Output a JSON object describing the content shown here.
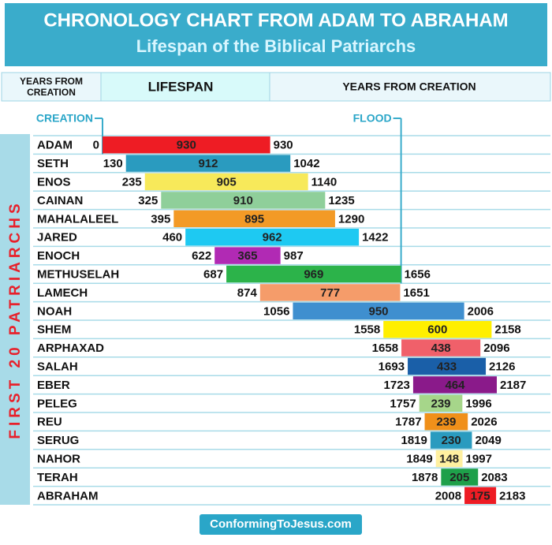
{
  "chart_data": {
    "type": "timeline",
    "title": "CHRONOLOGY CHART FROM ADAM TO ABRAHAM",
    "subtitle": "Lifespan of the Biblical Patriarchs",
    "headers": [
      "YEARS FROM CREATION",
      "LIFESPAN",
      "YEARS FROM CREATION"
    ],
    "markers": [
      "CREATION",
      "FLOOD"
    ],
    "side_label": "FIRST 20 PATRIARCHS",
    "footer": "ConformingToJesus.com",
    "categories": [
      "ADAM",
      "SETH",
      "ENOS",
      "CAINAN",
      "MAHALALEEL",
      "JARED",
      "ENOCH",
      "METHUSELAH",
      "LAMECH",
      "NOAH",
      "SHEM",
      "ARPHAXAD",
      "SALAH",
      "EBER",
      "PELEG",
      "REU",
      "SERUG",
      "NAHOR",
      "TERAH",
      "ABRAHAM"
    ],
    "start": [
      0,
      130,
      235,
      325,
      395,
      460,
      622,
      687,
      874,
      1056,
      1558,
      1658,
      1693,
      1723,
      1757,
      1787,
      1819,
      1849,
      1878,
      2008
    ],
    "lifespan": [
      930,
      912,
      905,
      910,
      895,
      962,
      365,
      969,
      777,
      950,
      600,
      438,
      433,
      464,
      239,
      239,
      230,
      148,
      205,
      175
    ],
    "end": [
      930,
      1042,
      1140,
      1235,
      1290,
      1422,
      987,
      1656,
      1651,
      2006,
      2158,
      2096,
      2126,
      2187,
      1996,
      2026,
      2049,
      1997,
      2083,
      2183
    ],
    "colors": [
      "#ee1c24",
      "#2a9bbf",
      "#f7e95a",
      "#8fcf9a",
      "#f39a26",
      "#1ec9f2",
      "#b12ab4",
      "#2cb34a",
      "#f59c6a",
      "#3f8fcf",
      "#ffef00",
      "#f0606a",
      "#1a5fa8",
      "#8a1a8a",
      "#a6d68a",
      "#f0901a",
      "#2a9bbf",
      "#fff0a0",
      "#1ea04a",
      "#ee1c24"
    ]
  }
}
